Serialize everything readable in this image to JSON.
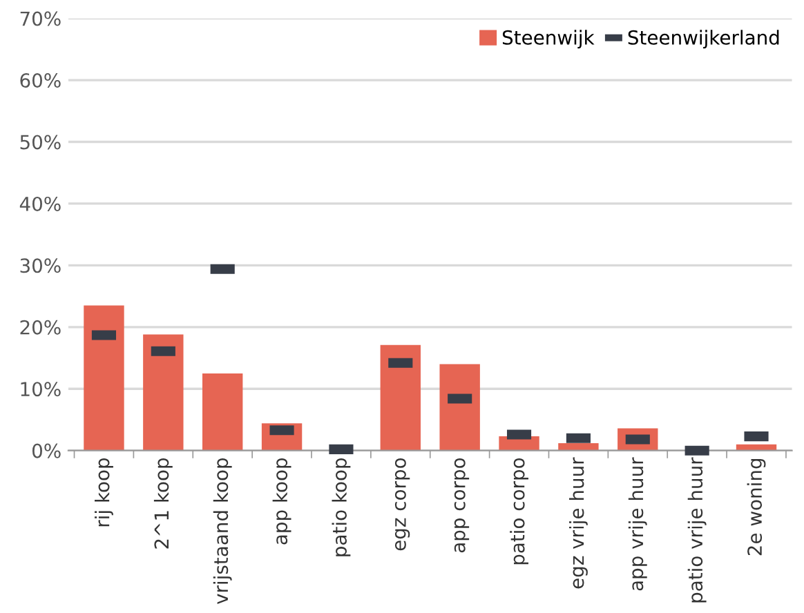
{
  "chart_data": {
    "type": "bar",
    "categories": [
      "rij koop",
      "2^1 koop",
      "vrijstaand koop",
      "app koop",
      "patio koop",
      "egz corpo",
      "app corpo",
      "patio corpo",
      "egz vrije huur",
      "app vrije huur",
      "patio vrije huur",
      "2e woning"
    ],
    "series": [
      {
        "name": "Steenwijk",
        "color": "#e66553",
        "values": [
          23.5,
          18.8,
          12.5,
          4.4,
          0,
          17.1,
          14.0,
          2.3,
          1.2,
          3.6,
          0,
          1.0
        ]
      },
      {
        "name": "Steenwijkerland",
        "type": "scatter",
        "color": "#373d48",
        "values": [
          18.7,
          16.1,
          29.4,
          3.3,
          0.2,
          14.2,
          8.4,
          2.6,
          2.0,
          1.8,
          0,
          2.3
        ]
      }
    ],
    "ylim": [
      0,
      70
    ],
    "yticks": [
      {
        "value": 0,
        "label": "0%"
      },
      {
        "value": 10,
        "label": "10%"
      },
      {
        "value": 20,
        "label": "20%"
      },
      {
        "value": 30,
        "label": "30%"
      },
      {
        "value": 40,
        "label": "40%"
      },
      {
        "value": 50,
        "label": "50%"
      },
      {
        "value": 60,
        "label": "60%"
      },
      {
        "value": 70,
        "label": "70%"
      }
    ],
    "grid": "y",
    "legend": "top right"
  }
}
